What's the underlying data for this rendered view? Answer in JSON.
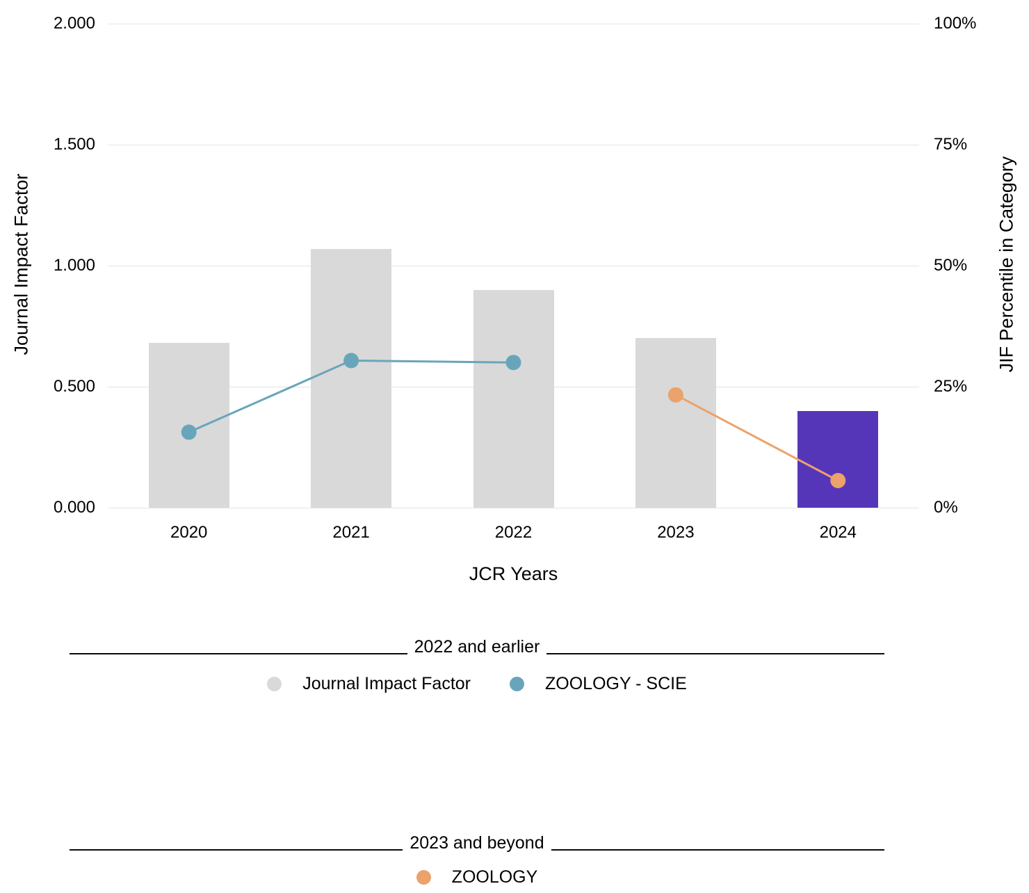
{
  "chart_data": {
    "type": "bar",
    "subtype": "combo-bar-line-dual-axis",
    "categories": [
      "2020",
      "2021",
      "2022",
      "2023",
      "2024"
    ],
    "bar_series": {
      "name": "Journal Impact Factor",
      "axis": "left",
      "values": [
        0.68,
        1.07,
        0.9,
        0.7,
        0.4
      ],
      "default_color": "#d9d9d9",
      "highlight_color": "#5636b8",
      "highlight_index": 4
    },
    "line_series": [
      {
        "name": "ZOOLOGY - SCIE",
        "axis": "right",
        "color": "#69a5ba",
        "points": [
          {
            "category": "2020",
            "value": 15.6
          },
          {
            "category": "2021",
            "value": 30.4
          },
          {
            "category": "2022",
            "value": 30.0
          }
        ]
      },
      {
        "name": "ZOOLOGY",
        "axis": "right",
        "color": "#eba26b",
        "points": [
          {
            "category": "2023",
            "value": 23.3
          },
          {
            "category": "2024",
            "value": 5.6
          }
        ]
      }
    ],
    "left_axis": {
      "title": "Journal Impact Factor",
      "ticks": [
        "0.000",
        "0.500",
        "1.000",
        "1.500",
        "2.000"
      ],
      "min": 0,
      "max": 2
    },
    "right_axis": {
      "title": "JIF Percentile in Category",
      "ticks": [
        "0%",
        "25%",
        "50%",
        "75%",
        "100%"
      ],
      "min": 0,
      "max": 100
    },
    "x_axis": {
      "title": "JCR Years"
    },
    "grid": true,
    "legend_position": "bottom",
    "legend_groups": [
      {
        "divider_label": "2022 and earlier",
        "items": [
          {
            "label": "Journal Impact Factor",
            "color": "#d9d9d9"
          },
          {
            "label": "ZOOLOGY - SCIE",
            "color": "#69a5ba"
          }
        ]
      },
      {
        "divider_label": "2023 and beyond",
        "items": [
          {
            "label": "ZOOLOGY",
            "color": "#eba26b"
          }
        ]
      }
    ]
  }
}
